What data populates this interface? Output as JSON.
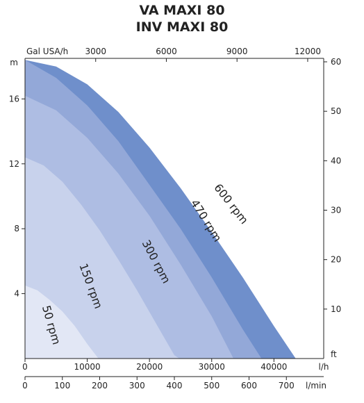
{
  "header": {
    "title_line1": "VA MAXI 80",
    "title_line2": "INV MAXI 80"
  },
  "chart_data": {
    "type": "area",
    "title": "VA MAXI 80 / INV MAXI 80",
    "colors": {
      "600 rpm": "#6f8fcb",
      "470 rpm": "#93a8d8",
      "300 rpm": "#aebde3",
      "150 rpm": "#c8d2ec",
      "50 rpm": "#e2e7f5",
      "axis": "#222222"
    },
    "x_axis_primary": {
      "unit": "l/h",
      "range": [
        0,
        48000
      ],
      "ticks": [
        "0",
        "10000",
        "20000",
        "30000",
        "40000"
      ],
      "tick_values": [
        0,
        10000,
        20000,
        30000,
        40000
      ]
    },
    "x_axis_secondary": {
      "unit": "l/min",
      "range": [
        0,
        800
      ],
      "ticks": [
        "0",
        "100",
        "200",
        "300",
        "400",
        "500",
        "600",
        "700"
      ],
      "tick_values": [
        0,
        100,
        200,
        300,
        400,
        500,
        600,
        700
      ]
    },
    "x_axis_top": {
      "unit": "Gal USA/h",
      "range": [
        0,
        12680
      ],
      "ticks": [
        "3000",
        "6000",
        "9000",
        "12000"
      ],
      "tick_values": [
        3000,
        6000,
        9000,
        12000
      ]
    },
    "y_axis_left": {
      "unit": "m",
      "range": [
        0,
        18.5
      ],
      "ticks": [
        "4",
        "8",
        "12",
        "16"
      ],
      "tick_values": [
        4,
        8,
        12,
        16
      ]
    },
    "y_axis_right": {
      "unit": "ft",
      "range": [
        0,
        60.7
      ],
      "ticks": [
        "10",
        "20",
        "30",
        "40",
        "50",
        "60"
      ],
      "tick_values": [
        10,
        20,
        30,
        40,
        50,
        60
      ]
    },
    "series": [
      {
        "name": "600 rpm",
        "curve": {
          "x": [
            0,
            5000,
            10000,
            15000,
            20000,
            25000,
            30000,
            35000,
            40000,
            43500
          ],
          "y": [
            18.4,
            18.0,
            16.9,
            15.2,
            13.0,
            10.5,
            7.8,
            5.0,
            2.0,
            0
          ]
        }
      },
      {
        "name": "470 rpm",
        "curve": {
          "x": [
            0,
            5000,
            10000,
            15000,
            20000,
            25000,
            30000,
            35000,
            38000
          ],
          "y": [
            18.4,
            17.3,
            15.6,
            13.4,
            10.7,
            8.0,
            5.0,
            1.8,
            0
          ]
        }
      },
      {
        "name": "300 rpm",
        "curve": {
          "x": [
            0,
            5000,
            10000,
            15000,
            20000,
            25000,
            30000,
            33500
          ],
          "y": [
            16.2,
            15.3,
            13.6,
            11.4,
            8.8,
            5.8,
            2.6,
            0
          ]
        }
      },
      {
        "name": "150 rpm",
        "curve": {
          "x": [
            0,
            3000,
            6000,
            9000,
            12000,
            15000,
            18000,
            21000,
            24000,
            24800
          ],
          "y": [
            12.4,
            11.9,
            10.9,
            9.5,
            7.9,
            6.1,
            4.2,
            2.2,
            0.2,
            0
          ]
        }
      },
      {
        "name": "50 rpm",
        "curve": {
          "x": [
            0,
            2000,
            4000,
            6000,
            8000,
            10000,
            11800
          ],
          "y": [
            4.5,
            4.2,
            3.6,
            2.9,
            2.0,
            0.9,
            0
          ]
        }
      }
    ],
    "labels": [
      "600 rpm",
      "470 rpm",
      "300 rpm",
      "150 rpm",
      "50 rpm"
    ],
    "legend": "none",
    "grid": false
  }
}
